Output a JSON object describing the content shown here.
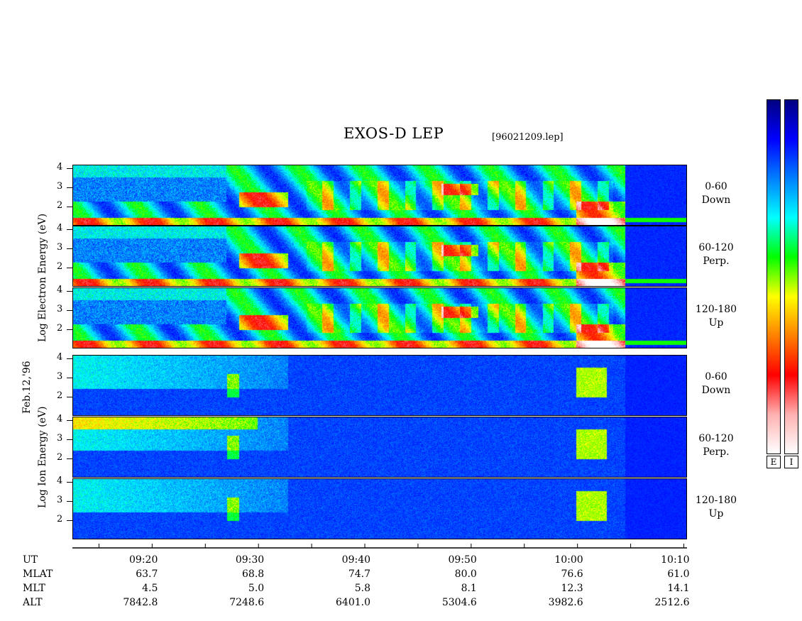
{
  "chart_data": {
    "type": "heatmap",
    "title": "EXOS-D LEP",
    "file_label": "[96021209.lep]",
    "date_label": "Feb.12,'96",
    "electron_axis_label": [
      "Log",
      "Electron",
      "Energy",
      "(eV)"
    ],
    "ion_axis_label": [
      "Log",
      "Ion",
      "Energy",
      "(eV)"
    ],
    "y_ticks": [
      "4",
      "3",
      "2"
    ],
    "ylim": [
      1,
      4.2
    ],
    "y_scale": "log energy (eV)",
    "panels": [
      {
        "species": "Electron",
        "pitch_angle": "0-60",
        "direction": "Down"
      },
      {
        "species": "Electron",
        "pitch_angle": "60-120",
        "direction": "Perp."
      },
      {
        "species": "Electron",
        "pitch_angle": "120-180",
        "direction": "Up"
      },
      {
        "species": "Ion",
        "pitch_angle": "0-60",
        "direction": "Down"
      },
      {
        "species": "Ion",
        "pitch_angle": "60-120",
        "direction": "Perp."
      },
      {
        "species": "Ion",
        "pitch_angle": "120-180",
        "direction": "Up"
      }
    ],
    "x_axis": {
      "row_labels": [
        "UT",
        "MLAT",
        "MLT",
        "ALT"
      ],
      "columns": [
        {
          "UT": "09:20",
          "MLAT": "63.7",
          "MLT": "4.5",
          "ALT": "7842.8"
        },
        {
          "UT": "09:30",
          "MLAT": "68.8",
          "MLT": "5.0",
          "ALT": "7248.6"
        },
        {
          "UT": "09:40",
          "MLAT": "74.7",
          "MLT": "5.8",
          "ALT": "6401.0"
        },
        {
          "UT": "09:50",
          "MLAT": "80.0",
          "MLT": "8.1",
          "ALT": "5304.6"
        },
        {
          "UT": "10:00",
          "MLAT": "76.6",
          "MLT": "12.3",
          "ALT": "3982.6"
        },
        {
          "UT": "10:10",
          "MLAT": "61.0",
          "MLT": "14.1",
          "ALT": "2512.6"
        }
      ],
      "xlim_minutes_after_0900": [
        12.5,
        70.3
      ]
    },
    "colorbars": [
      "E",
      "I"
    ],
    "colorbar_colors": [
      "#ffffff",
      "#ffb0b0",
      "#ff0000",
      "#ff8000",
      "#ffff00",
      "#00ff00",
      "#00ffff",
      "#0080ff",
      "#0000ff",
      "#000080"
    ]
  }
}
